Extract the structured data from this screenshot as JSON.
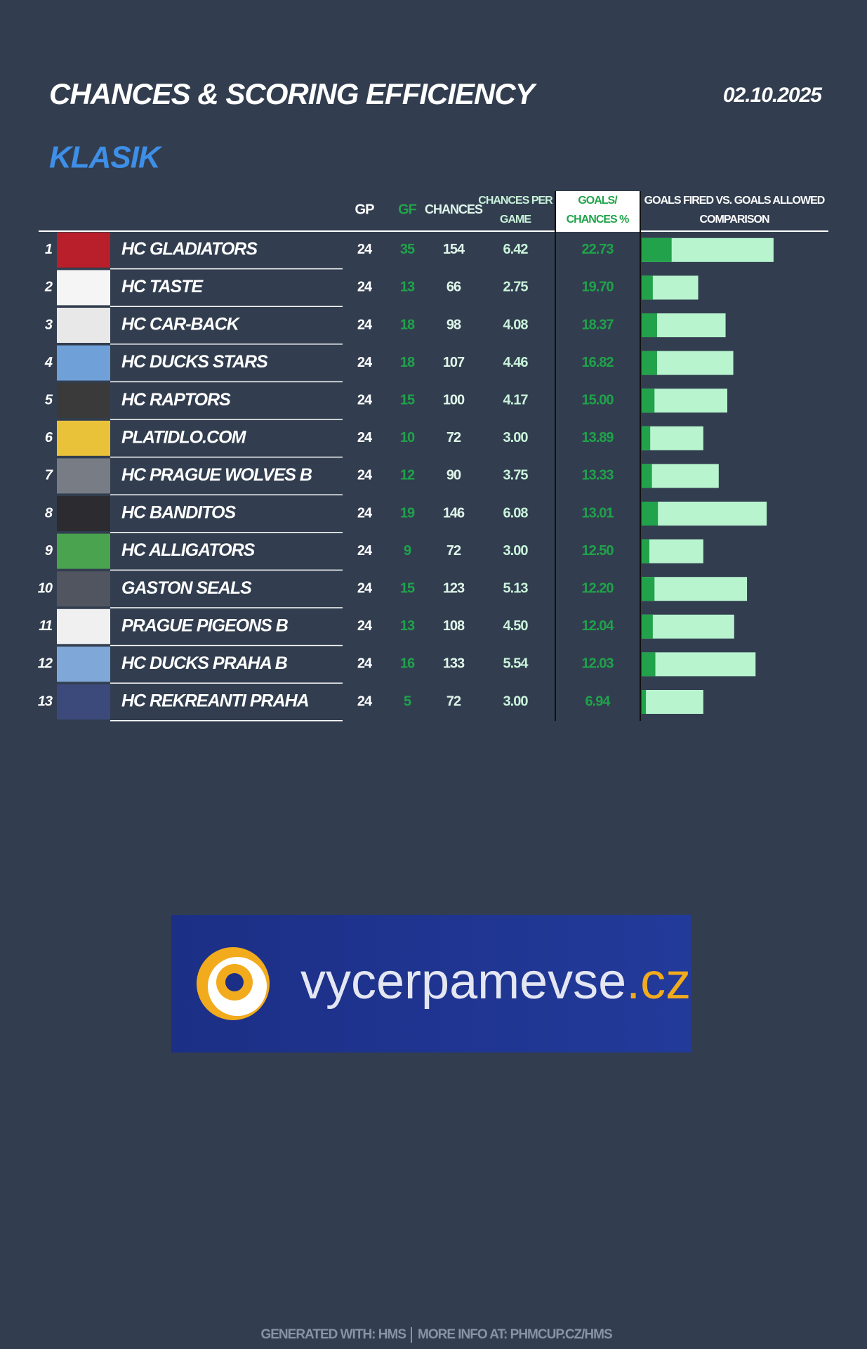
{
  "header": {
    "title": "CHANCES & SCORING EFFICIENCY",
    "date": "02.10.2025",
    "subtitle": "KLASIK"
  },
  "table": {
    "columns": {
      "gp": "GP",
      "gf": "GF",
      "chances": "CHANCES",
      "chances_per_game": [
        "CHANCES PER",
        "GAME"
      ],
      "goals_chances_pct": [
        "GOALS/",
        "CHANCES %"
      ],
      "comparison": [
        "GOALS FIRED VS. GOALS ALLOWED",
        "COMPARISON"
      ]
    },
    "rows": [
      {
        "rank": 1,
        "team": "HC GLADIATORS",
        "gp": 24,
        "gf": 35,
        "chances": 154,
        "chances_per_game": "6.42",
        "goals_chances_pct": "22.73"
      },
      {
        "rank": 2,
        "team": "HC TASTE",
        "gp": 24,
        "gf": 13,
        "chances": 66,
        "chances_per_game": "2.75",
        "goals_chances_pct": "19.70"
      },
      {
        "rank": 3,
        "team": "HC CAR-BACK",
        "gp": 24,
        "gf": 18,
        "chances": 98,
        "chances_per_game": "4.08",
        "goals_chances_pct": "18.37"
      },
      {
        "rank": 4,
        "team": "HC DUCKS STARS",
        "gp": 24,
        "gf": 18,
        "chances": 107,
        "chances_per_game": "4.46",
        "goals_chances_pct": "16.82"
      },
      {
        "rank": 5,
        "team": "HC RAPTORS",
        "gp": 24,
        "gf": 15,
        "chances": 100,
        "chances_per_game": "4.17",
        "goals_chances_pct": "15.00"
      },
      {
        "rank": 6,
        "team": "PLATIDLO.COM",
        "gp": 24,
        "gf": 10,
        "chances": 72,
        "chances_per_game": "3.00",
        "goals_chances_pct": "13.89"
      },
      {
        "rank": 7,
        "team": "HC PRAGUE WOLVES B",
        "gp": 24,
        "gf": 12,
        "chances": 90,
        "chances_per_game": "3.75",
        "goals_chances_pct": "13.33"
      },
      {
        "rank": 8,
        "team": "HC BANDITOS",
        "gp": 24,
        "gf": 19,
        "chances": 146,
        "chances_per_game": "6.08",
        "goals_chances_pct": "13.01"
      },
      {
        "rank": 9,
        "team": "HC ALLIGATORS",
        "gp": 24,
        "gf": 9,
        "chances": 72,
        "chances_per_game": "3.00",
        "goals_chances_pct": "12.50"
      },
      {
        "rank": 10,
        "team": "GASTON SEALS",
        "gp": 24,
        "gf": 15,
        "chances": 123,
        "chances_per_game": "5.13",
        "goals_chances_pct": "12.20"
      },
      {
        "rank": 11,
        "team": "PRAGUE PIGEONS B",
        "gp": 24,
        "gf": 13,
        "chances": 108,
        "chances_per_game": "4.50",
        "goals_chances_pct": "12.04"
      },
      {
        "rank": 12,
        "team": "HC DUCKS PRAHA B",
        "gp": 24,
        "gf": 16,
        "chances": 133,
        "chances_per_game": "5.54",
        "goals_chances_pct": "12.03"
      },
      {
        "rank": 13,
        "team": "HC REKREANTI PRAHA",
        "gp": 24,
        "gf": 5,
        "chances": 72,
        "chances_per_game": "3.00",
        "goals_chances_pct": "6.94"
      }
    ]
  },
  "sponsor": {
    "name": "vycerpamevse",
    "tld": ".cz"
  },
  "footer": {
    "generated": "GENERATED WITH: HMS",
    "info": "MORE INFO AT: PHMCUP.CZ/HMS"
  }
}
